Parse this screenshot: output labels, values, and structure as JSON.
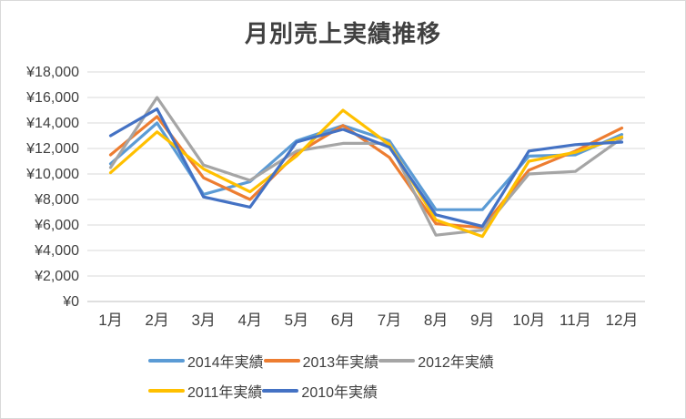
{
  "chart_data": {
    "type": "line",
    "title": "月別売上実績推移",
    "categories": [
      "1月",
      "2月",
      "3月",
      "4月",
      "5月",
      "6月",
      "7月",
      "8月",
      "9月",
      "10月",
      "11月",
      "12月"
    ],
    "series": [
      {
        "name": "2014年実績",
        "color": "#5B9BD5",
        "values": [
          10800,
          14000,
          8400,
          9400,
          12600,
          13800,
          12600,
          7200,
          7200,
          11400,
          11500,
          13100
        ]
      },
      {
        "name": "2013年実績",
        "color": "#ED7D31",
        "values": [
          11500,
          14500,
          9700,
          8000,
          11600,
          13800,
          11300,
          6100,
          5800,
          10300,
          11800,
          13600
        ]
      },
      {
        "name": "2012年実績",
        "color": "#A5A5A5",
        "values": [
          10500,
          16000,
          10700,
          9500,
          11800,
          12400,
          12400,
          5200,
          5600,
          10000,
          10200,
          12800
        ]
      },
      {
        "name": "2011年実績",
        "color": "#FFC000",
        "values": [
          10100,
          13300,
          10400,
          8600,
          11400,
          15000,
          12300,
          6400,
          5100,
          11000,
          11700,
          12900
        ]
      },
      {
        "name": "2010年実績",
        "color": "#4472C4",
        "values": [
          13000,
          15100,
          8200,
          7400,
          12500,
          13500,
          12100,
          6800,
          5900,
          11800,
          12300,
          12500
        ]
      }
    ],
    "ylim": [
      0,
      18000
    ],
    "y_tick_step": 2000,
    "y_tick_labels": [
      "¥0",
      "¥2,000",
      "¥4,000",
      "¥6,000",
      "¥8,000",
      "¥10,000",
      "¥12,000",
      "¥14,000",
      "¥16,000",
      "¥18,000"
    ],
    "grid": "horizontal",
    "legend_position": "bottom",
    "colors": {
      "gridline": "#D9D9D9",
      "axis_line": "#BFBFBF",
      "tick_label": "#404040",
      "title": "#404040"
    }
  }
}
